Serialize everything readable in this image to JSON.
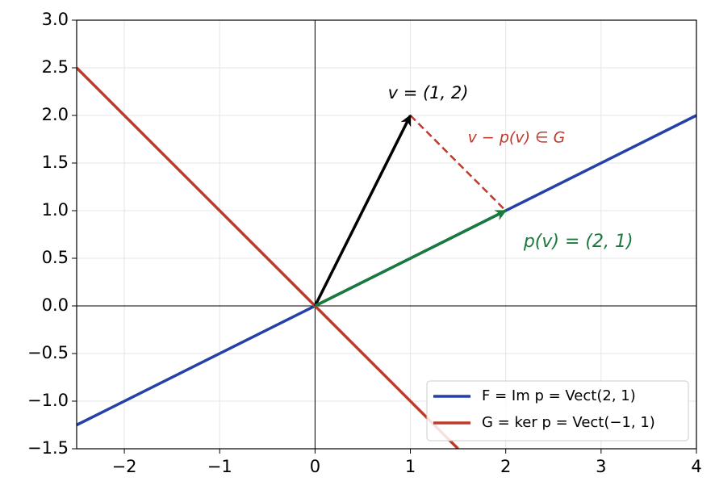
{
  "chart_data": {
    "type": "line",
    "xlim": [
      -2.5,
      4
    ],
    "ylim": [
      -1.5,
      3.0
    ],
    "xticks": [
      {
        "value": -2,
        "label": "−2"
      },
      {
        "value": -1,
        "label": "−1"
      },
      0,
      1,
      2,
      3,
      4
    ],
    "yticks": [
      {
        "value": -1.5,
        "label": "−1.5"
      },
      {
        "value": -1.0,
        "label": "−1.0"
      },
      {
        "value": -0.5,
        "label": "−0.5"
      },
      {
        "value": 0,
        "label": "0.0"
      },
      {
        "value": 0.5,
        "label": "0.5"
      },
      {
        "value": 1.0,
        "label": "1.0"
      },
      {
        "value": 1.5,
        "label": "1.5"
      },
      {
        "value": 2.0,
        "label": "2.0"
      },
      {
        "value": 2.5,
        "label": "2.5"
      },
      {
        "value": 3.0,
        "label": "3.0"
      }
    ],
    "grid": true,
    "legend": "lower right",
    "series": [
      {
        "name": "F = Im p = Vect(2, 1)",
        "color": "#2541a8",
        "x": [
          -2.5,
          4
        ],
        "values": [
          -1.25,
          2
        ]
      },
      {
        "name": "G = ker p = Vect(−1, 1)",
        "color": "#c0392b",
        "x": [
          -2.5,
          1.5
        ],
        "values": [
          2.5,
          -1.5
        ]
      }
    ],
    "vectors": [
      {
        "label": "v = (1, 2)",
        "color": "#000000",
        "x": [
          0,
          1
        ],
        "values": [
          0,
          2
        ]
      },
      {
        "label": "p(v) = (2, 1)",
        "color": "#1a7a3c",
        "x": [
          0,
          2
        ],
        "values": [
          0,
          1
        ]
      }
    ],
    "dashed": {
      "label": "v − p(v) ∈ G",
      "color": "#c0392b",
      "x": [
        1,
        2
      ],
      "values": [
        2,
        1
      ]
    }
  }
}
